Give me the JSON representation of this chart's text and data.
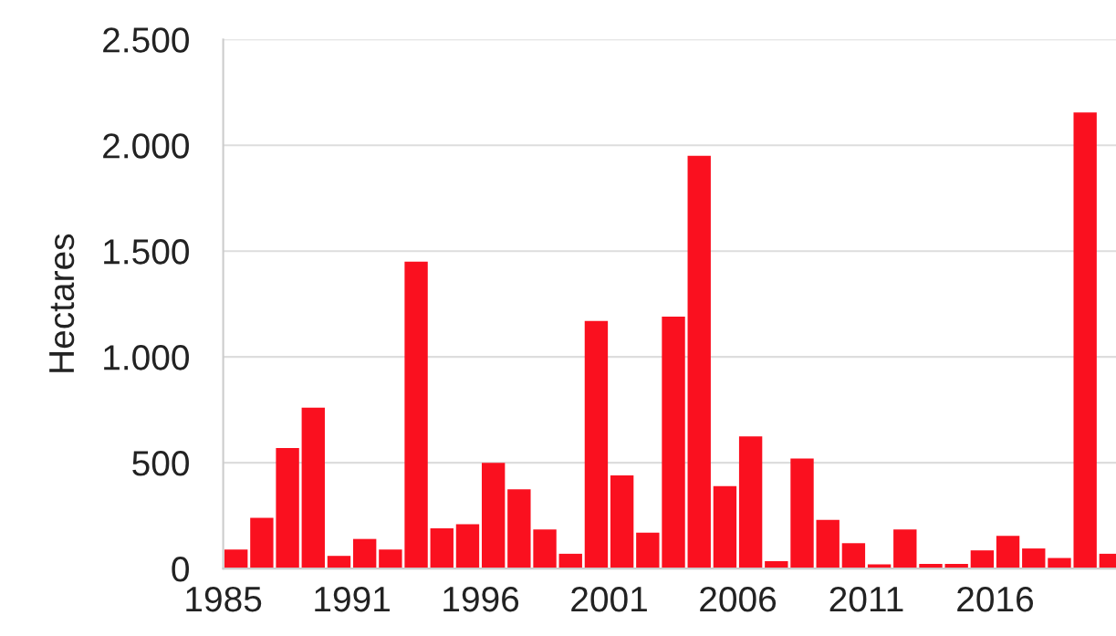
{
  "chart_data": {
    "type": "bar",
    "ylabel": "Hectares",
    "categories": [
      "1985",
      null,
      null,
      null,
      null,
      "1991",
      null,
      null,
      null,
      null,
      "1996",
      null,
      null,
      null,
      null,
      "2001",
      null,
      null,
      null,
      null,
      "2006",
      null,
      null,
      null,
      null,
      "2011",
      null,
      null,
      null,
      null,
      "2016",
      null,
      null,
      null,
      null
    ],
    "values": [
      90,
      240,
      570,
      760,
      60,
      140,
      90,
      1450,
      190,
      210,
      500,
      375,
      185,
      70,
      1170,
      440,
      170,
      1190,
      1950,
      390,
      625,
      35,
      520,
      230,
      120,
      20,
      185,
      22,
      22,
      86,
      155,
      95,
      50,
      2155,
      70
    ],
    "color": "#fa101f",
    "ylim": [
      0,
      2500
    ],
    "yticks": [
      0,
      500,
      {
        "value": 1000,
        "label": "1.000"
      },
      {
        "value": 1500,
        "label": "1.500"
      },
      {
        "value": 2000,
        "label": "2.000"
      },
      {
        "value": 2500,
        "label": "2.500"
      }
    ],
    "grid": "y"
  }
}
